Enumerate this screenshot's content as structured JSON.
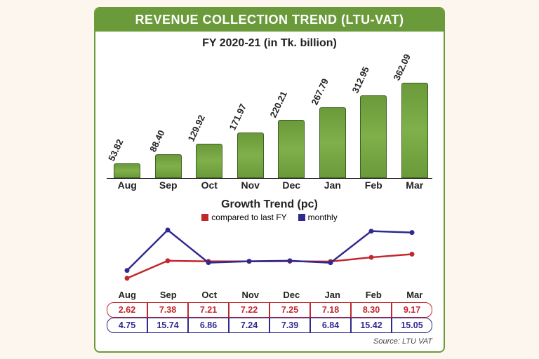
{
  "header": "REVENUE COLLECTION TREND (LTU-VAT)",
  "bar_chart": {
    "subtitle": "FY 2020-21 (in Tk. billion)",
    "categories": [
      "Aug",
      "Sep",
      "Oct",
      "Nov",
      "Dec",
      "Jan",
      "Feb",
      "Mar"
    ],
    "values": [
      53.82,
      88.4,
      129.92,
      171.97,
      220.21,
      267.79,
      312.95,
      362.09
    ],
    "value_labels": [
      "53.82",
      "88.40",
      "129.92",
      "171.97",
      "220.21",
      "267.79",
      "312.95",
      "362.09"
    ],
    "bar_color": "#6a9a3a",
    "bar_border": "#3d5f20",
    "ymax": 400
  },
  "line_chart": {
    "title": "Growth Trend (pc)",
    "categories": [
      "Aug",
      "Sep",
      "Oct",
      "Nov",
      "Dec",
      "Jan",
      "Feb",
      "Mar"
    ],
    "series": [
      {
        "name": "compared to last FY",
        "color": "#c1272d",
        "values": [
          2.62,
          7.38,
          7.21,
          7.22,
          7.25,
          7.18,
          8.3,
          9.17
        ]
      },
      {
        "name": "monthly",
        "color": "#2e2a8f",
        "values": [
          4.75,
          15.74,
          6.86,
          7.24,
          7.39,
          6.84,
          15.42,
          15.05
        ]
      }
    ],
    "ymin": 0,
    "ymax": 17
  },
  "table": {
    "rows": [
      [
        "2.62",
        "7.38",
        "7.21",
        "7.22",
        "7.25",
        "7.18",
        "8.30",
        "9.17"
      ],
      [
        "4.75",
        "15.74",
        "6.86",
        "7.24",
        "7.39",
        "6.84",
        "15.42",
        "15.05"
      ]
    ]
  },
  "source": "Source: LTU VAT"
}
